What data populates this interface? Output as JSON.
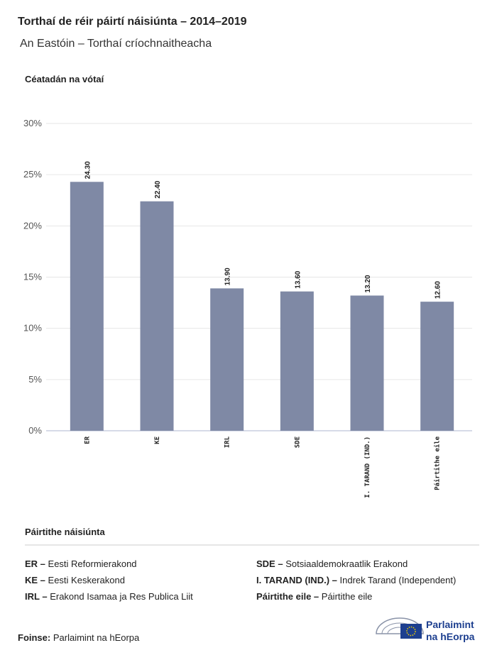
{
  "chart_data": {
    "type": "bar",
    "title": "Torthaí de réir páirtí náisiúnta – 2014–2019",
    "subtitle": "An Eastóin – Torthaí críochnaitheacha",
    "y_label": "Céatadán na vótaí",
    "categories": [
      "ER",
      "KE",
      "IRL",
      "SDE",
      "I. TARAND (IND.)",
      "Páirtithe eile"
    ],
    "values": [
      24.3,
      22.4,
      13.9,
      13.6,
      13.2,
      12.6
    ],
    "value_labels": [
      "24.30",
      "22.40",
      "13.90",
      "13.60",
      "13.20",
      "12.60"
    ],
    "color": "#7f89a5",
    "ylim": [
      0,
      30
    ],
    "yticks": [
      {
        "value": 0,
        "label": "0%"
      },
      {
        "value": 5,
        "label": "5%"
      },
      {
        "value": 10,
        "label": "10%"
      },
      {
        "value": 15,
        "label": "15%"
      },
      {
        "value": 20,
        "label": "20%"
      },
      {
        "value": 25,
        "label": "25%"
      },
      {
        "value": 30,
        "label": "30%"
      }
    ],
    "grid": true
  },
  "legend_panel": {
    "title": "Páirtithe náisiúnta",
    "items": [
      {
        "abbr": "ER –",
        "name": "Eesti Reformierakond"
      },
      {
        "abbr": "KE –",
        "name": "Eesti Keskerakond"
      },
      {
        "abbr": "IRL –",
        "name": "Erakond Isamaa ja Res Publica Liit"
      },
      {
        "abbr": "SDE –",
        "name": "Sotsiaaldemokraatlik Erakond"
      },
      {
        "abbr": "I. TARAND (IND.) –",
        "name": "Indrek Tarand (Independent)"
      },
      {
        "abbr": "Páirtithe eile –",
        "name": "Páirtithe eile"
      }
    ]
  },
  "source": {
    "label": "Foinse:",
    "text": "Parlaimint na hEorpa"
  },
  "logo": [
    "Parlaimint",
    "na hEorpa"
  ]
}
